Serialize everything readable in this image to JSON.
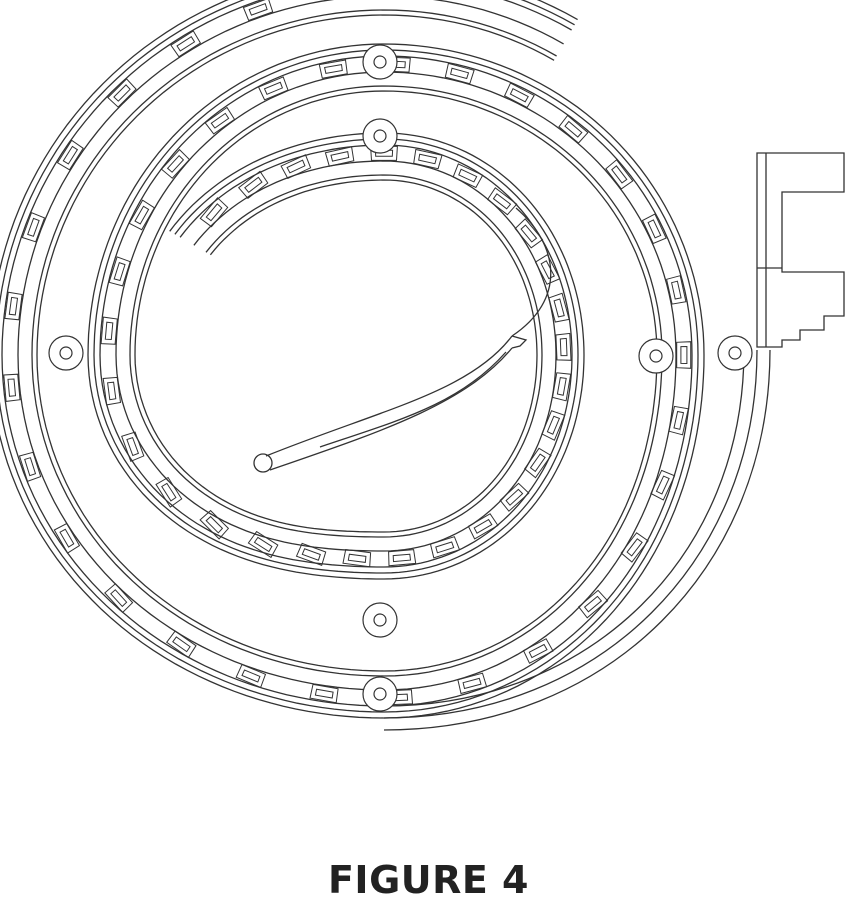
{
  "figure": {
    "caption": "FIGURE 4"
  },
  "colors": {
    "line": "#333333",
    "background": "#ffffff"
  }
}
